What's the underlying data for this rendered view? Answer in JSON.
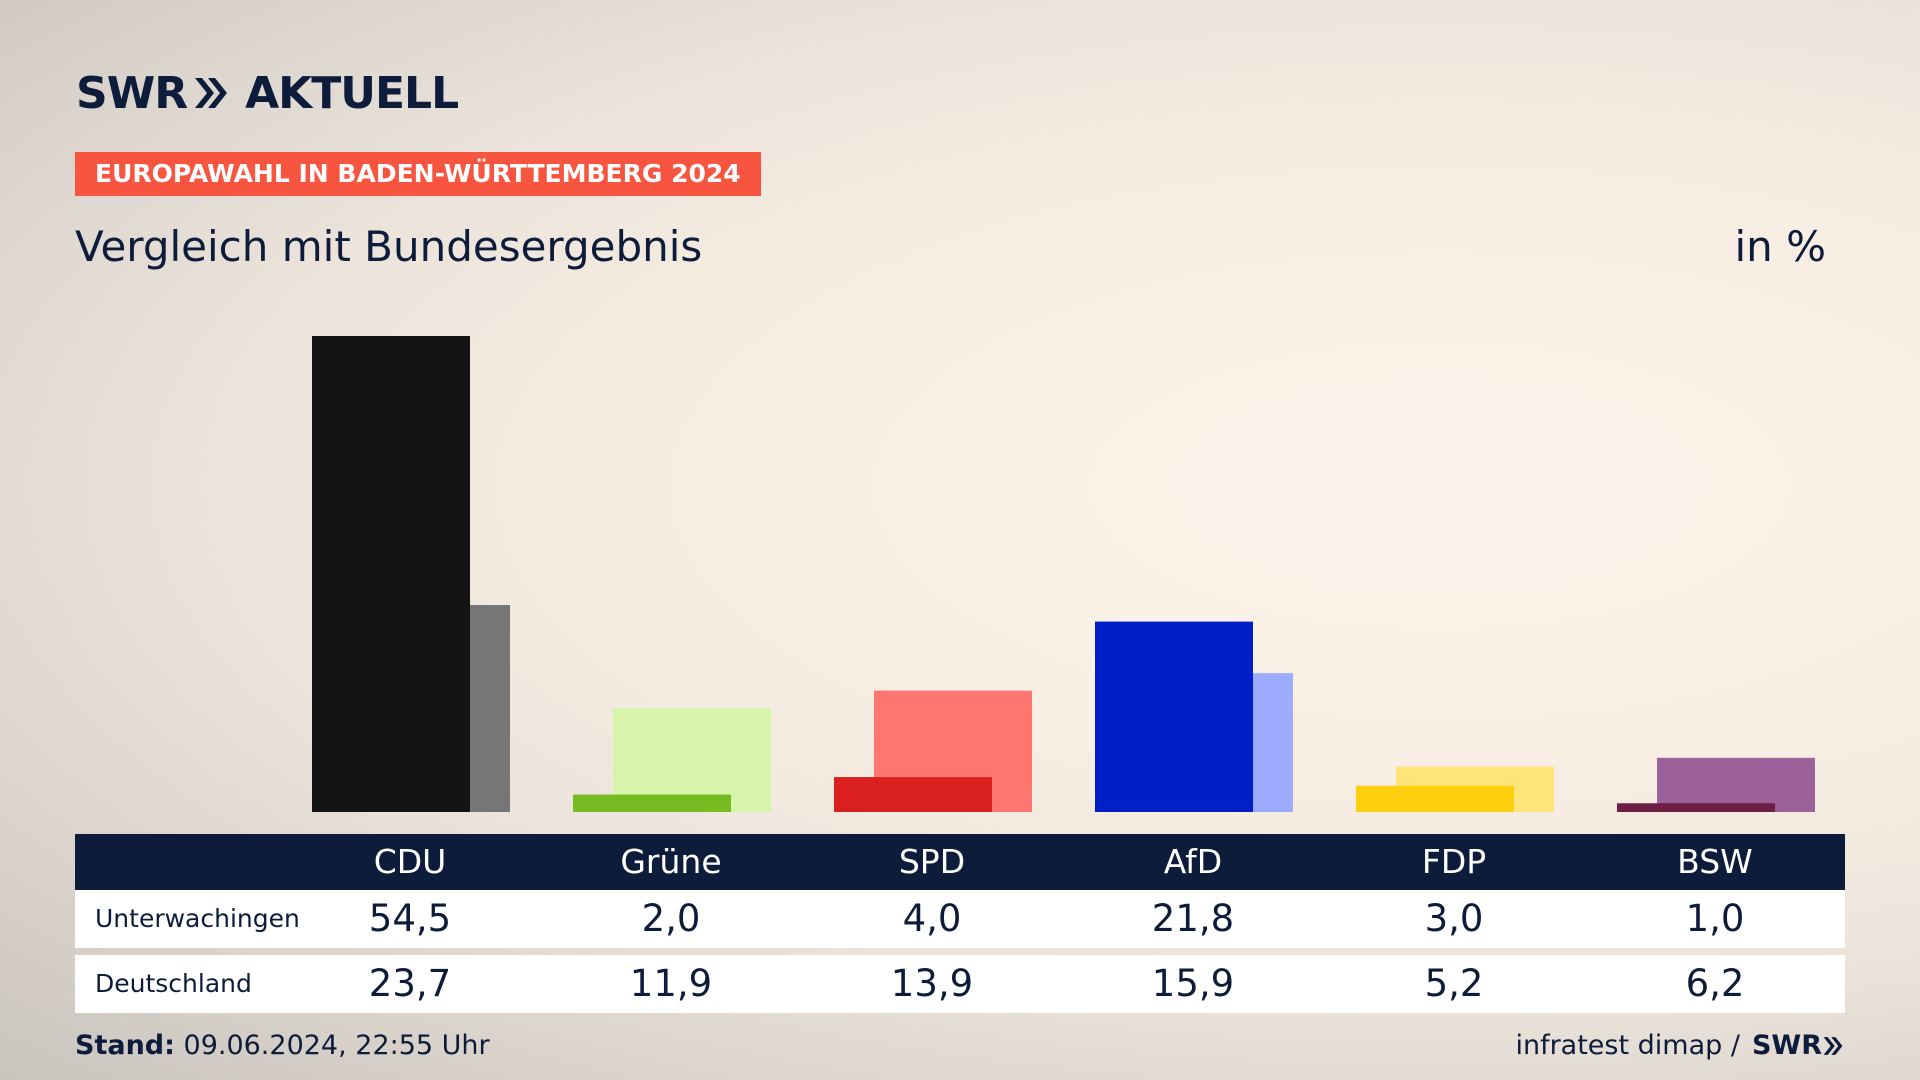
{
  "brand": {
    "swr": "SWR",
    "aktuell": "AKTUELL"
  },
  "badge": "EUROPAWAHL IN BADEN-WÜRTTEMBERG 2024",
  "subtitle": "Vergleich mit Bundesergebnis",
  "unit": "in %",
  "table": {
    "parties": [
      "CDU",
      "Grüne",
      "SPD",
      "AfD",
      "FDP",
      "BSW"
    ],
    "rows": [
      {
        "label": "Unterwachingen",
        "values": [
          "54,5",
          "2,0",
          "4,0",
          "21,8",
          "3,0",
          "1,0"
        ]
      },
      {
        "label": "Deutschland",
        "values": [
          "23,7",
          "11,9",
          "13,9",
          "15,9",
          "5,2",
          "6,2"
        ]
      }
    ]
  },
  "footer": {
    "stand_label": "Stand:",
    "stand_value": "09.06.2024, 22:55 Uhr",
    "source": "infratest dimap /",
    "source_brand": "SWR"
  },
  "chart_data": {
    "type": "bar",
    "categories": [
      "CDU",
      "Grüne",
      "SPD",
      "AfD",
      "FDP",
      "BSW"
    ],
    "series": [
      {
        "name": "Unterwachingen",
        "values": [
          54.5,
          2.0,
          4.0,
          21.8,
          3.0,
          1.0
        ],
        "colors": [
          "#141414",
          "#76bb21",
          "#d9201e",
          "#001fc7",
          "#ffcf0e",
          "#6b1f44"
        ]
      },
      {
        "name": "Deutschland",
        "values": [
          23.7,
          11.9,
          13.9,
          15.9,
          5.2,
          6.2
        ],
        "colors": [
          "#767676",
          "#d6f5ab",
          "#ff756f",
          "#9dabff",
          "#ffe47a",
          "#9c609a"
        ]
      }
    ],
    "ylim": [
      0,
      54.5
    ],
    "grid": false,
    "legend": "none"
  }
}
